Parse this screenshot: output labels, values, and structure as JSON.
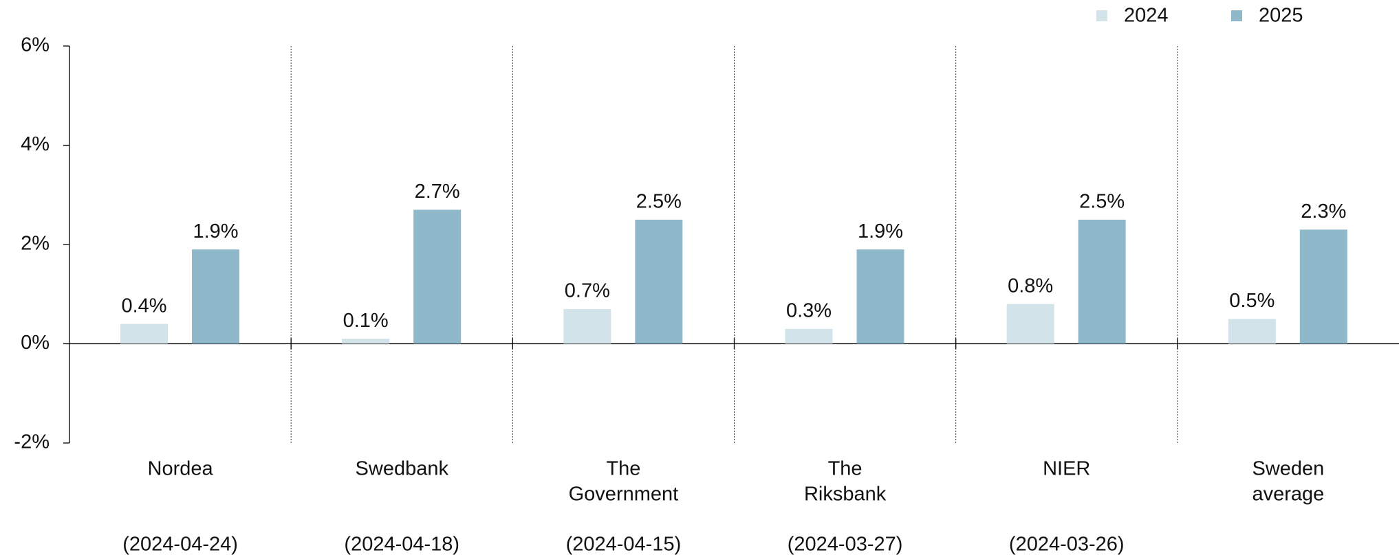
{
  "chart_data": {
    "type": "bar",
    "categories": [
      [
        "Nordea"
      ],
      [
        "Swedbank"
      ],
      [
        "The",
        "Government"
      ],
      [
        "The",
        "Riksbank"
      ],
      [
        "NIER"
      ],
      [
        "Sweden",
        "average"
      ]
    ],
    "dates": [
      "(2024-04-24)",
      "(2024-04-18)",
      "(2024-04-15)",
      "(2024-03-27)",
      "(2024-03-26)",
      null
    ],
    "series": [
      {
        "name": "2024",
        "color": "#d3e3ea",
        "values": [
          0.4,
          0.1,
          0.7,
          0.3,
          0.8,
          0.5
        ],
        "value_labels": [
          "0.4%",
          "0.1%",
          "0.7%",
          "0.3%",
          "0.8%",
          "0.5%"
        ]
      },
      {
        "name": "2025",
        "color": "#8fb8ca",
        "values": [
          1.9,
          2.7,
          2.5,
          1.9,
          2.5,
          2.3
        ],
        "value_labels": [
          "1.9%",
          "2.7%",
          "2.5%",
          "1.9%",
          "2.5%",
          "2.3%"
        ]
      }
    ],
    "ylim": [
      -2,
      6
    ],
    "yticks": [
      {
        "value": -2,
        "label": "-2%"
      },
      {
        "value": 0,
        "label": "0%"
      },
      {
        "value": 2,
        "label": "2%"
      },
      {
        "value": 4,
        "label": "4%"
      },
      {
        "value": 6,
        "label": "6%"
      }
    ],
    "legend": "top-right"
  }
}
